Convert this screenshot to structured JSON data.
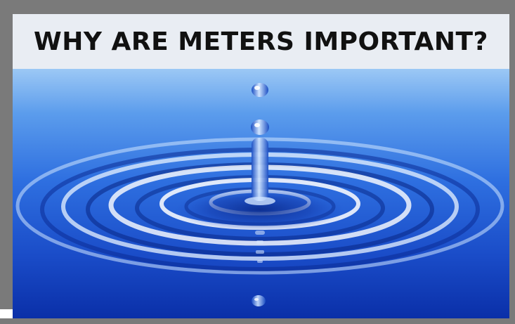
{
  "slide": {
    "title": "WHY ARE METERS IMPORTANT?",
    "image": {
      "subject": "water-droplet-ripple-icon",
      "colors": {
        "deep_blue": "#0a2fa8",
        "mid_blue": "#2e6fe0",
        "light_blue": "#9cc8f5",
        "highlight": "#ffffff"
      }
    },
    "colors": {
      "frame": "#7a7a7a",
      "title_background": "#e9edf3",
      "title_text": "#111111"
    }
  }
}
